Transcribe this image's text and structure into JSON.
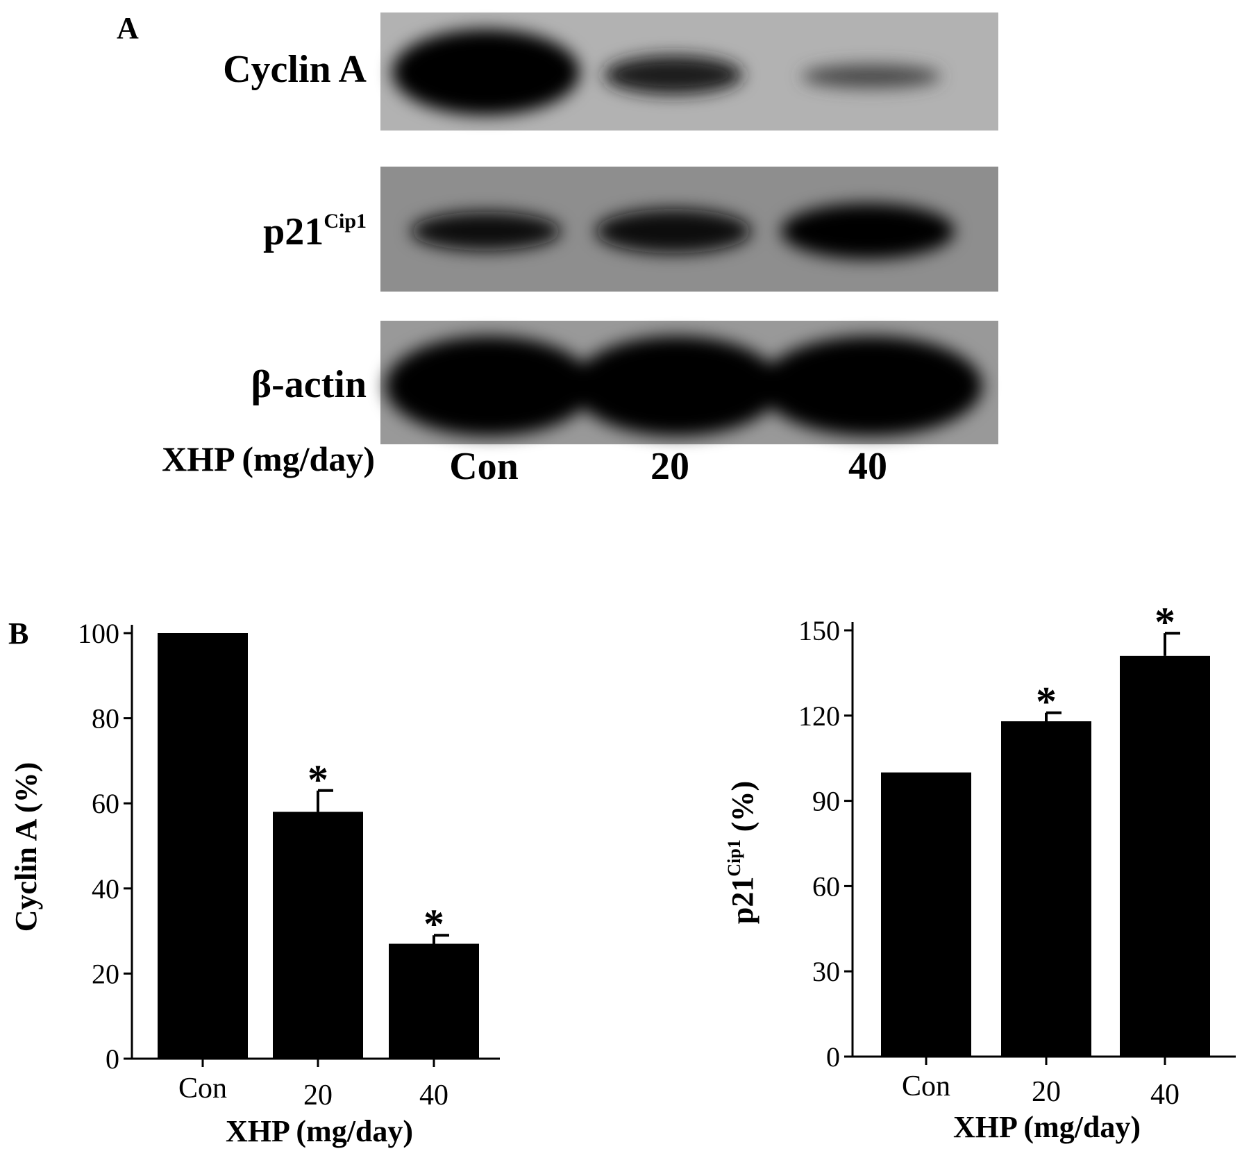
{
  "panel_a": {
    "label": "A",
    "blot_labels": [
      "Cyclin A",
      "p21",
      "β-actin"
    ],
    "p21_superscript": "Cip1",
    "treatment_label": "XHP (mg/day)",
    "lane_labels": [
      "Con",
      "20",
      "40"
    ],
    "colors": {
      "membrane": "#b0b0b0",
      "band": "#0a0a0a"
    }
  },
  "panel_b_label": "B",
  "chart_data": [
    {
      "type": "bar",
      "categories": [
        "Con",
        "20",
        "40"
      ],
      "values": [
        100,
        58,
        27
      ],
      "error": [
        0,
        5,
        2
      ],
      "significance": [
        "",
        "*",
        "*"
      ],
      "xlabel": "XHP (mg/day)",
      "ylabel": "Cyclin A (%)",
      "ylim": [
        0,
        100
      ],
      "yticks": [
        0,
        20,
        40,
        60,
        80,
        100
      ],
      "color": "#000000"
    },
    {
      "type": "bar",
      "categories": [
        "Con",
        "20",
        "40"
      ],
      "values": [
        100,
        118,
        141
      ],
      "error": [
        0,
        3,
        8
      ],
      "significance": [
        "",
        "*",
        "*"
      ],
      "xlabel": "XHP (mg/day)",
      "ylabel": "p21",
      "ylabel_superscript": "Cip1",
      "ylabel_suffix": " (%)",
      "ylim": [
        0,
        150
      ],
      "yticks": [
        0,
        30,
        60,
        90,
        120,
        150
      ],
      "color": "#000000"
    }
  ]
}
